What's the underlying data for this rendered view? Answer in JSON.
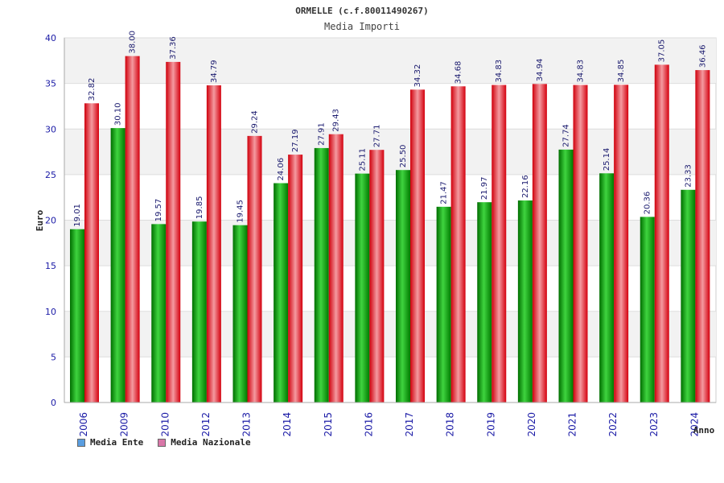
{
  "chart_data": {
    "type": "bar",
    "title": "ORMELLE (c.f.80011490267)",
    "subtitle": "Media Importi",
    "xlabel": "Anno",
    "ylabel": "Euro",
    "ylim": [
      0,
      40
    ],
    "yticks": [
      0,
      5,
      10,
      15,
      20,
      25,
      30,
      35,
      40
    ],
    "grid": true,
    "legend_position": "bottom-left",
    "categories": [
      "2006",
      "2009",
      "2010",
      "2012",
      "2013",
      "2014",
      "2015",
      "2016",
      "2017",
      "2018",
      "2019",
      "2020",
      "2021",
      "2022",
      "2023",
      "2024"
    ],
    "series": [
      {
        "name": "Media Ente",
        "color": "#00a000",
        "legend_color": "#5a9ee0",
        "values": [
          19.01,
          30.1,
          19.57,
          19.85,
          19.45,
          24.06,
          27.91,
          25.11,
          25.5,
          21.47,
          21.97,
          22.16,
          27.74,
          25.14,
          20.36,
          23.33
        ],
        "labels": [
          "19.01",
          "30.10",
          "19.57",
          "19.85",
          "19.45",
          "24.06",
          "27.91",
          "25.11",
          "25.50",
          "21.47",
          "21.97",
          "22.16",
          "27.74",
          "25.14",
          "20.36",
          "23.33"
        ]
      },
      {
        "name": "Media Nazionale",
        "color": "#e0101a",
        "legend_color": "#d977a8",
        "values": [
          32.82,
          38.0,
          37.36,
          34.79,
          29.24,
          27.19,
          29.43,
          27.71,
          34.32,
          34.68,
          34.83,
          34.94,
          34.83,
          34.85,
          37.05,
          36.46
        ],
        "labels": [
          "32.82",
          "38.00",
          "37.36",
          "34.79",
          "29.24",
          "27.19",
          "29.43",
          "27.71",
          "34.32",
          "34.68",
          "34.83",
          "34.94",
          "34.83",
          "34.85",
          "37.05",
          "36.46"
        ]
      }
    ]
  }
}
